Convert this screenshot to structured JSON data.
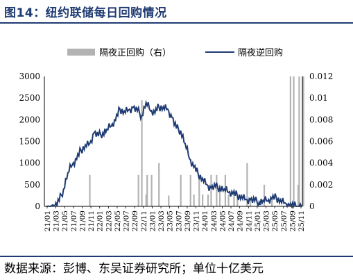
{
  "header": {
    "title": "图14：纽约联储每日回购情况"
  },
  "footer": {
    "source": "数据来源：彭博、东吴证券研究所；单位十亿美元"
  },
  "colors": {
    "line": "#1f3b73",
    "bar": "#b3b3b3",
    "rule": "#1f3b73"
  },
  "chart_data": {
    "type": "line",
    "legend": [
      "隔夜正回购（右）",
      "隔夜逆回购"
    ],
    "legend_position": "top",
    "y_left": {
      "ylim": [
        0,
        3000
      ],
      "ticks": [
        "0",
        "500",
        "1000",
        "1500",
        "2000",
        "2500",
        "3000"
      ]
    },
    "y_right": {
      "ylim": [
        0,
        0.012
      ],
      "ticks": [
        "0",
        "0.002",
        "0.004",
        "0.006",
        "0.008",
        "0.01",
        "0.012"
      ]
    },
    "x_ticks": [
      "21/01",
      "21/03",
      "21/05",
      "21/07",
      "21/09",
      "21/11",
      "22/01",
      "22/03",
      "22/05",
      "22/07",
      "22/09",
      "22/11",
      "23/01",
      "23/03",
      "23/05",
      "23/07",
      "23/09",
      "23/11",
      "24/01",
      "24/03",
      "24/05",
      "24/07",
      "24/09",
      "24/11",
      "25/01",
      "25/03",
      "25/05",
      "25/07",
      "25/09",
      "25/11"
    ],
    "grid": false,
    "series": [
      {
        "name": "隔夜逆回购",
        "axis": "left",
        "points": [
          [
            "2021-01",
            0
          ],
          [
            "2021-03",
            10
          ],
          [
            "2021-04",
            120
          ],
          [
            "2021-05",
            400
          ],
          [
            "2021-06",
            780
          ],
          [
            "2021-07",
            950
          ],
          [
            "2021-08",
            1080
          ],
          [
            "2021-09",
            1300
          ],
          [
            "2021-10",
            1420
          ],
          [
            "2021-11",
            1450
          ],
          [
            "2021-12",
            1700
          ],
          [
            "2022-01",
            1620
          ],
          [
            "2022-02",
            1700
          ],
          [
            "2022-03",
            1780
          ],
          [
            "2022-04",
            1850
          ],
          [
            "2022-05",
            1980
          ],
          [
            "2022-06",
            2250
          ],
          [
            "2022-07",
            2200
          ],
          [
            "2022-08",
            2230
          ],
          [
            "2022-09",
            2280
          ],
          [
            "2022-10",
            2200
          ],
          [
            "2022-11",
            2100
          ],
          [
            "2022-12",
            2400
          ],
          [
            "2023-01",
            2200
          ],
          [
            "2023-02",
            2150
          ],
          [
            "2023-03",
            2300
          ],
          [
            "2023-04",
            2300
          ],
          [
            "2023-05",
            2250
          ],
          [
            "2023-06",
            2050
          ],
          [
            "2023-07",
            1800
          ],
          [
            "2023-08",
            1750
          ],
          [
            "2023-09",
            1450
          ],
          [
            "2023-10",
            1100
          ],
          [
            "2023-11",
            900
          ],
          [
            "2023-12",
            750
          ],
          [
            "2024-01",
            650
          ],
          [
            "2024-02",
            500
          ],
          [
            "2024-03",
            420
          ],
          [
            "2024-04",
            450
          ],
          [
            "2024-05",
            430
          ],
          [
            "2024-06",
            400
          ],
          [
            "2024-07",
            320
          ],
          [
            "2024-08",
            290
          ],
          [
            "2024-09",
            250
          ],
          [
            "2024-10",
            240
          ],
          [
            "2024-11",
            160
          ],
          [
            "2024-12",
            150
          ],
          [
            "2025-01",
            120
          ],
          [
            "2025-02",
            100
          ],
          [
            "2025-03",
            140
          ],
          [
            "2025-04",
            120
          ],
          [
            "2025-05",
            170
          ],
          [
            "2025-06",
            200
          ],
          [
            "2025-07",
            150
          ],
          [
            "2025-08",
            80
          ],
          [
            "2025-09",
            20
          ],
          [
            "2025-10",
            5
          ],
          [
            "2025-11",
            5
          ],
          [
            "2025-12",
            10
          ]
        ]
      },
      {
        "name": "隔夜正回购（右）",
        "axis": "right",
        "type": "bar",
        "points": [
          [
            "2021-11",
            0.0029
          ],
          [
            "2022-10",
            0.0029
          ],
          [
            "2022-11",
            0.0098
          ],
          [
            "2022-12",
            0.0029
          ],
          [
            "2022-12",
            0.0011
          ],
          [
            "2023-01",
            0.0029
          ],
          [
            "2023-03",
            0.004
          ],
          [
            "2023-05",
            0.001
          ],
          [
            "2023-08",
            0.0029
          ],
          [
            "2023-10",
            0.0029
          ],
          [
            "2023-11",
            0.0011
          ],
          [
            "2023-12",
            0.0029
          ],
          [
            "2024-01",
            0.0011
          ],
          [
            "2024-02",
            0.0011
          ],
          [
            "2024-03",
            0.0029
          ],
          [
            "2024-04",
            0.0029
          ],
          [
            "2024-05",
            0.002
          ],
          [
            "2024-06",
            0.0029
          ],
          [
            "2024-07",
            0.0011
          ],
          [
            "2024-08",
            0.0011
          ],
          [
            "2024-09",
            0.0011
          ],
          [
            "2024-11",
            0.004
          ],
          [
            "2024-12",
            0.0008
          ],
          [
            "2025-03",
            0.002
          ],
          [
            "2025-05",
            0.0008
          ],
          [
            "2025-09",
            0.012
          ],
          [
            "2025-10",
            0.012
          ],
          [
            "2025-11",
            0.012
          ],
          [
            "2025-11",
            0.002
          ],
          [
            "2025-12",
            0.012
          ]
        ]
      }
    ]
  }
}
